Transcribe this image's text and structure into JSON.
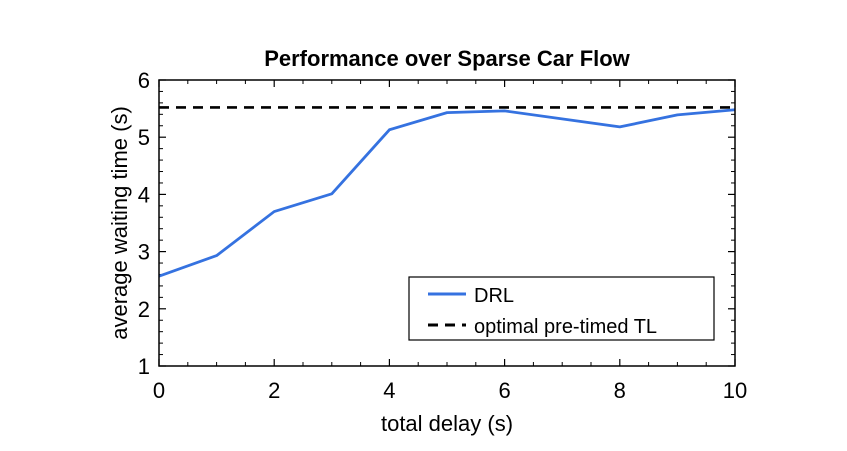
{
  "chart_data": {
    "type": "line",
    "title": "Performance over Sparse Car Flow",
    "xlabel": "total delay (s)",
    "ylabel": "average waiting time (s)",
    "xlim": [
      0,
      10
    ],
    "ylim": [
      1,
      6
    ],
    "xticks": [
      0,
      2,
      4,
      6,
      8,
      10
    ],
    "yticks": [
      1,
      2,
      3,
      4,
      5,
      6
    ],
    "grid": false,
    "legend_position": "bottom-right",
    "series": [
      {
        "name": "DRL",
        "style": "solid",
        "color": "#3572e0",
        "x": [
          0,
          1,
          2,
          3,
          4,
          5,
          6,
          8,
          9,
          10
        ],
        "y": [
          2.57,
          2.93,
          3.7,
          4.01,
          5.13,
          5.43,
          5.46,
          5.18,
          5.39,
          5.48
        ]
      },
      {
        "name": "optimal pre-timed TL",
        "style": "dashed",
        "color": "#000000",
        "x": [
          0,
          10
        ],
        "y": [
          5.52,
          5.52
        ]
      }
    ]
  }
}
